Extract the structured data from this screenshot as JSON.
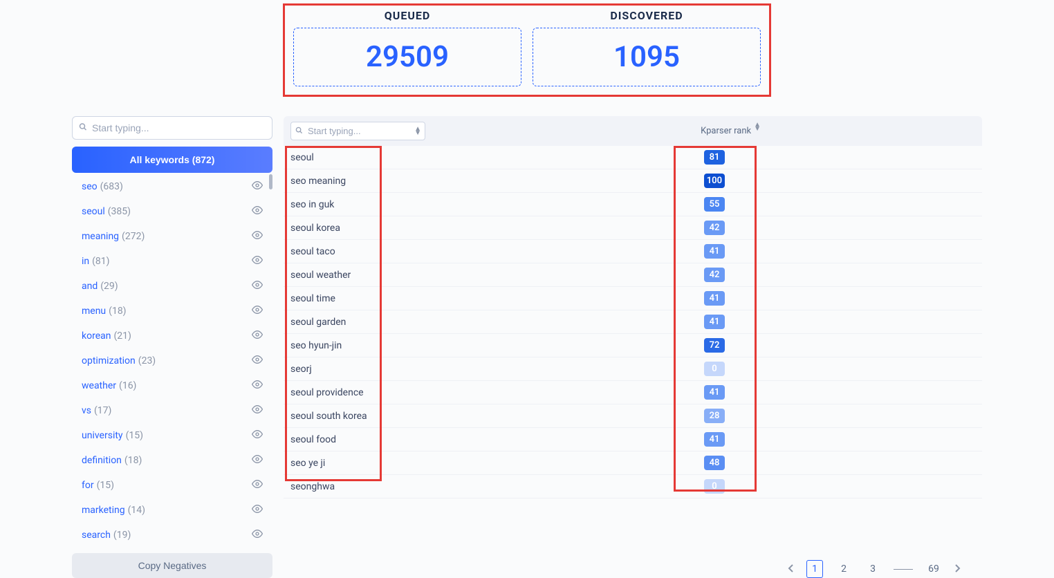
{
  "stats": {
    "queued": {
      "label": "QUEUED",
      "value": "29509"
    },
    "discovered": {
      "label": "DISCOVERED",
      "value": "1095"
    }
  },
  "sidebar": {
    "search_placeholder": "Start typing...",
    "all_keywords_label": "All keywords (872)",
    "copy_negatives_label": "Copy Negatives",
    "items": [
      {
        "name": "seo",
        "count": "(683)"
      },
      {
        "name": "seoul",
        "count": "(385)"
      },
      {
        "name": "meaning",
        "count": "(272)"
      },
      {
        "name": "in",
        "count": "(81)"
      },
      {
        "name": "and",
        "count": "(29)"
      },
      {
        "name": "menu",
        "count": "(18)"
      },
      {
        "name": "korean",
        "count": "(21)"
      },
      {
        "name": "optimization",
        "count": "(23)"
      },
      {
        "name": "weather",
        "count": "(16)"
      },
      {
        "name": "vs",
        "count": "(17)"
      },
      {
        "name": "university",
        "count": "(15)"
      },
      {
        "name": "definition",
        "count": "(18)"
      },
      {
        "name": "for",
        "count": "(15)"
      },
      {
        "name": "marketing",
        "count": "(14)"
      },
      {
        "name": "search",
        "count": "(19)"
      }
    ]
  },
  "table": {
    "search_placeholder": "Start typing...",
    "rank_header": "Kparser rank",
    "rows": [
      {
        "keyword": "seoul",
        "rank": 81,
        "color": "#1e62e0"
      },
      {
        "keyword": "seo meaning",
        "rank": 100,
        "color": "#0d4fd1"
      },
      {
        "keyword": "seo in guk",
        "rank": 55,
        "color": "#4b86f2"
      },
      {
        "keyword": "seoul korea",
        "rank": 42,
        "color": "#6a9af5"
      },
      {
        "keyword": "seoul taco",
        "rank": 41,
        "color": "#6a9af5"
      },
      {
        "keyword": "seoul weather",
        "rank": 42,
        "color": "#6a9af5"
      },
      {
        "keyword": "seoul time",
        "rank": 41,
        "color": "#6a9af5"
      },
      {
        "keyword": "seoul garden",
        "rank": 41,
        "color": "#6a9af5"
      },
      {
        "keyword": "seo hyun-jin",
        "rank": 72,
        "color": "#2a6ae6"
      },
      {
        "keyword": "seorj",
        "rank": 0,
        "color": "#c5d7fb"
      },
      {
        "keyword": "seoul providence",
        "rank": 41,
        "color": "#6a9af5"
      },
      {
        "keyword": "seoul south korea",
        "rank": 28,
        "color": "#88aef7"
      },
      {
        "keyword": "seoul food",
        "rank": 41,
        "color": "#6a9af5"
      },
      {
        "keyword": "seo ye ji",
        "rank": 48,
        "color": "#5a8ef3"
      },
      {
        "keyword": "seonghwa",
        "rank": 0,
        "color": "#c5d7fb"
      }
    ]
  },
  "pagination": {
    "pages": [
      "1",
      "2",
      "3"
    ],
    "last": "69"
  },
  "colors": {
    "accent": "#2962ff",
    "highlight_border": "#e53935"
  }
}
